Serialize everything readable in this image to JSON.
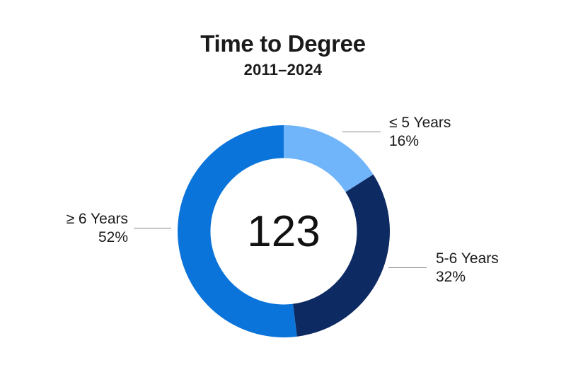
{
  "chart_data": {
    "type": "donut",
    "title": "Time to Degree",
    "subtitle": "2011–2024",
    "center_label": "123",
    "start_angle_deg": 0,
    "direction": "clockwise",
    "donut_hole_ratio": 0.69,
    "background_color": "#ffffff",
    "leader_line_color": "#8a8a8a",
    "legend_position": "callouts",
    "segments": [
      {
        "id": "le-5-years",
        "label": "≤ 5 Years",
        "value": 16,
        "percent_label": "16%",
        "color": "#70B5FA"
      },
      {
        "id": "5-6-years",
        "label": "5-6 Years",
        "value": 32,
        "percent_label": "32%",
        "color": "#0E2A63"
      },
      {
        "id": "ge-6-years",
        "label": "≥ 6 Years",
        "value": 52,
        "percent_label": "52%",
        "color": "#0B74DB"
      }
    ]
  }
}
